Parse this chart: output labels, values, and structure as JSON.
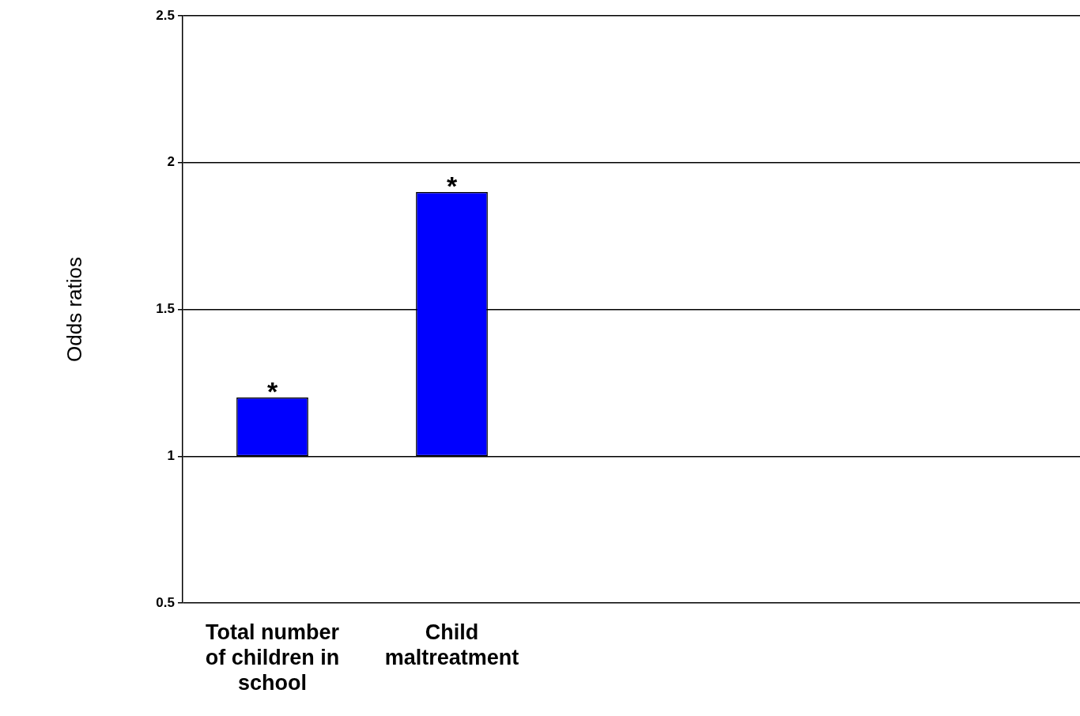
{
  "chart_data": {
    "type": "bar",
    "categories": [
      "Total number of children in school",
      "Child maltreatment",
      null,
      null,
      null
    ],
    "base": [
      1,
      1,
      null,
      null,
      null
    ],
    "values": [
      0.2,
      0.9,
      null,
      null,
      null
    ],
    "color": "#0000ff",
    "ylabel": "Odds ratios",
    "ylim": [
      0.5,
      2.5
    ],
    "yticks": [
      0.5,
      1,
      1.5,
      2,
      2.5
    ],
    "grid": "y",
    "legend": false,
    "annotations": [
      {
        "text": "*",
        "x": "Total number of children in school",
        "y": 1.2
      },
      {
        "text": "*",
        "x": "Child maltreatment",
        "y": 1.9
      }
    ]
  }
}
